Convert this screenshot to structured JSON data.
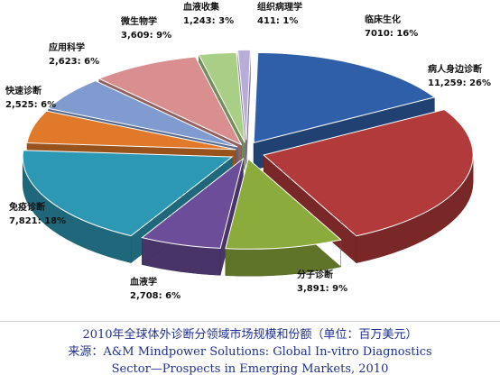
{
  "chart_data": {
    "type": "pie",
    "slices": [
      {
        "name": "临床生化",
        "value": 7010,
        "value_label": "7010",
        "percent": "16%",
        "color": "#2f5fa8"
      },
      {
        "name": "病人身边诊断",
        "value": 11259,
        "value_label": "11,259",
        "percent": "26%",
        "color": "#b23a3a"
      },
      {
        "name": "分子诊断",
        "value": 3891,
        "value_label": "3,891",
        "percent": "9%",
        "color": "#8bab3c"
      },
      {
        "name": "血液学",
        "value": 2708,
        "value_label": "2,708",
        "percent": "6%",
        "color": "#6b4d99"
      },
      {
        "name": "免疫诊断",
        "value": 7821,
        "value_label": "7,821",
        "percent": "18%",
        "color": "#2d98b3"
      },
      {
        "name": "快速诊断",
        "value": 2525,
        "value_label": "2,525",
        "percent": "6%",
        "color": "#e07a2a"
      },
      {
        "name": "应用科学",
        "value": 2623,
        "value_label": "2,623",
        "percent": "6%",
        "color": "#7f9bd0"
      },
      {
        "name": "微生物学",
        "value": 3609,
        "value_label": "3,609",
        "percent": "9%",
        "color": "#d98f8f"
      },
      {
        "name": "血液收集",
        "value": 1243,
        "value_label": "1,243",
        "percent": "3%",
        "color": "#a9cf86"
      },
      {
        "name": "组织病理学",
        "value": 411,
        "value_label": "411",
        "percent": "1%",
        "color": "#b8acd8"
      }
    ]
  },
  "caption": {
    "line1": "2010年全球体外诊断分领域市场规模和份额（单位：百万美元）",
    "line2_prefix": "来源：",
    "line2": "A&M Mindpower Solutions: Global In-vitro Diagnostics",
    "line3": "Sector—Prospects in Emerging Markets, 2010"
  }
}
